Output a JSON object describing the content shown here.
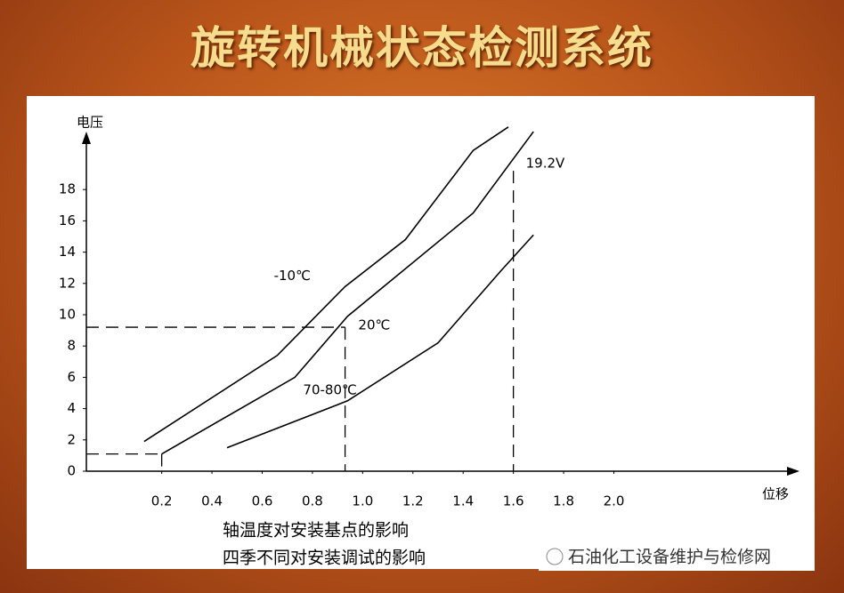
{
  "slide_title": "旋转机械状态检测系统",
  "captions": [
    "轴温度对安装基点的影响",
    "四季不同对安装调试的影响"
  ],
  "watermark": "石油化工设备维护与检修网",
  "chart_data": {
    "type": "line",
    "y_label": "电压",
    "x_label": "位移",
    "xlim": [
      -0.1,
      2.7
    ],
    "ylim": [
      0,
      22.5
    ],
    "xticks": [
      0.2,
      0.4,
      0.6,
      0.8,
      {
        "value": 1,
        "label": "1.0"
      },
      1.2,
      1.4,
      1.6,
      1.8,
      {
        "value": 2,
        "label": "2.0"
      }
    ],
    "yticks": [
      0,
      2,
      4,
      6,
      8,
      10,
      12,
      14,
      16,
      18
    ],
    "series": [
      {
        "name": "-10℃",
        "color": "#000000",
        "x": [
          0.13,
          0.66,
          0.93,
          1.17,
          1.44,
          1.58
        ],
        "values": [
          1.9,
          7.4,
          11.8,
          14.8,
          20.5,
          22.0
        ]
      },
      {
        "name": "20℃",
        "color": "#000000",
        "x": [
          0.2,
          0.73,
          0.94,
          1.44,
          1.68
        ],
        "values": [
          1.1,
          6.0,
          9.9,
          16.5,
          21.7
        ]
      },
      {
        "name": "70-80℃",
        "color": "#000000",
        "x": [
          0.46,
          0.94,
          1.3,
          1.55,
          1.68
        ],
        "values": [
          1.5,
          4.5,
          8.2,
          12.8,
          15.1
        ]
      }
    ],
    "guides": [
      {
        "x": 0.93,
        "y": 9.2,
        "style": "both"
      },
      {
        "x": 0.2,
        "y": 1.1,
        "style": "both"
      },
      {
        "x": 1.6,
        "y": 19.2,
        "style": "vertical",
        "label": "19.2V"
      }
    ]
  }
}
